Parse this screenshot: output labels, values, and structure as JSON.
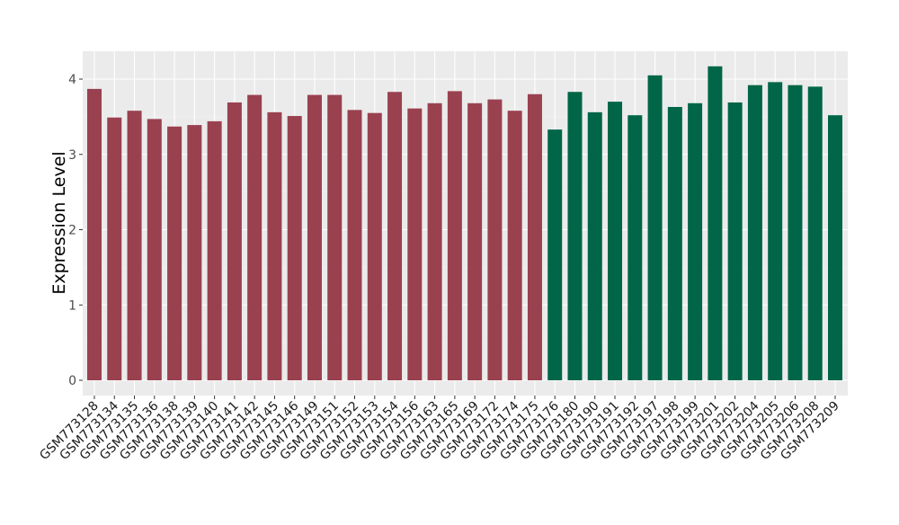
{
  "chart_data": {
    "type": "bar",
    "title": "",
    "xlabel": "",
    "ylabel": "Expression Level",
    "ylim": [
      -0.2,
      4.4
    ],
    "yticks": [
      0,
      1,
      2,
      3,
      4
    ],
    "grid": true,
    "colors": {
      "group1": "#9a4150",
      "group2": "#006647",
      "panel": "#ebebeb",
      "grid": "#ffffff"
    },
    "categories": [
      "GSM773128",
      "GSM773134",
      "GSM773135",
      "GSM773136",
      "GSM773138",
      "GSM773139",
      "GSM773140",
      "GSM773141",
      "GSM773142",
      "GSM773145",
      "GSM773146",
      "GSM773149",
      "GSM773151",
      "GSM773152",
      "GSM773153",
      "GSM773154",
      "GSM773156",
      "GSM773163",
      "GSM773165",
      "GSM773169",
      "GSM773172",
      "GSM773174",
      "GSM773175",
      "GSM773176",
      "GSM773180",
      "GSM773190",
      "GSM773191",
      "GSM773192",
      "GSM773197",
      "GSM773198",
      "GSM773199",
      "GSM773201",
      "GSM773202",
      "GSM773204",
      "GSM773205",
      "GSM773206",
      "GSM773208",
      "GSM773209"
    ],
    "values": [
      3.87,
      3.49,
      3.58,
      3.47,
      3.37,
      3.39,
      3.44,
      3.69,
      3.79,
      3.56,
      3.51,
      3.79,
      3.79,
      3.59,
      3.55,
      3.83,
      3.61,
      3.68,
      3.84,
      3.68,
      3.73,
      3.58,
      3.8,
      3.33,
      3.83,
      3.56,
      3.7,
      3.52,
      4.05,
      3.63,
      3.68,
      4.17,
      3.69,
      3.92,
      3.96,
      3.92,
      3.9,
      3.52
    ],
    "groups": [
      1,
      1,
      1,
      1,
      1,
      1,
      1,
      1,
      1,
      1,
      1,
      1,
      1,
      1,
      1,
      1,
      1,
      1,
      1,
      1,
      1,
      1,
      1,
      2,
      2,
      2,
      2,
      2,
      2,
      2,
      2,
      2,
      2,
      2,
      2,
      2,
      2,
      2
    ]
  }
}
